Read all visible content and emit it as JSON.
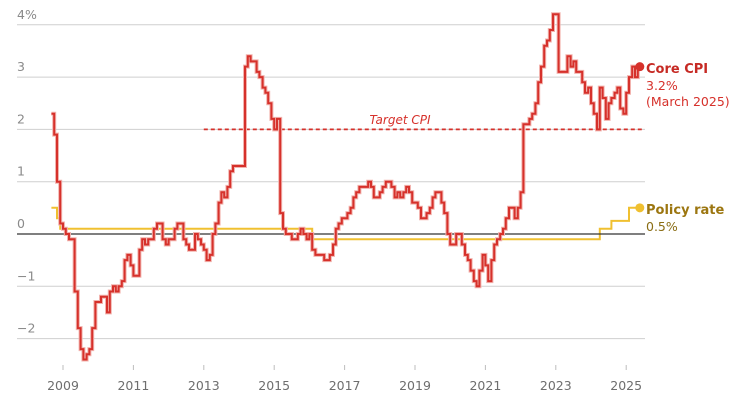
{
  "chart_data": {
    "type": "line",
    "title": "",
    "xlabel": "",
    "ylabel": "",
    "ylim": [
      -2.5,
      4.2
    ],
    "xlim": [
      2008.4,
      2025.6
    ],
    "grid": true,
    "legend_position": "right-inline",
    "y_ticks": [
      {
        "value": 4,
        "label": "4%"
      },
      {
        "value": 3,
        "label": "3"
      },
      {
        "value": 2,
        "label": "2"
      },
      {
        "value": 1,
        "label": "1"
      },
      {
        "value": 0,
        "label": "0"
      },
      {
        "value": -1,
        "label": "−1"
      },
      {
        "value": -2,
        "label": "−2"
      }
    ],
    "x_ticks": [
      {
        "value": 2009,
        "label": "2009"
      },
      {
        "value": 2011,
        "label": "2011"
      },
      {
        "value": 2013,
        "label": "2013"
      },
      {
        "value": 2015,
        "label": "2015"
      },
      {
        "value": 2017,
        "label": "2017"
      },
      {
        "value": 2019,
        "label": "2019"
      },
      {
        "value": 2021,
        "label": "2021"
      },
      {
        "value": 2023,
        "label": "2023"
      },
      {
        "value": 2025,
        "label": "2025"
      }
    ],
    "series": [
      {
        "name": "Core CPI",
        "color": "#d6312b",
        "step": true,
        "label_title": "Core CPI",
        "label_value": "3.2%",
        "label_note": "(March 2025)",
        "points": [
          [
            2008.67,
            2.3
          ],
          [
            2008.75,
            1.9
          ],
          [
            2008.83,
            1.0
          ],
          [
            2008.92,
            0.2
          ],
          [
            2009.0,
            0.1
          ],
          [
            2009.08,
            0.0
          ],
          [
            2009.17,
            -0.1
          ],
          [
            2009.33,
            -1.1
          ],
          [
            2009.42,
            -1.8
          ],
          [
            2009.5,
            -2.2
          ],
          [
            2009.58,
            -2.4
          ],
          [
            2009.67,
            -2.3
          ],
          [
            2009.75,
            -2.2
          ],
          [
            2009.83,
            -1.8
          ],
          [
            2009.92,
            -1.3
          ],
          [
            2010.08,
            -1.2
          ],
          [
            2010.25,
            -1.5
          ],
          [
            2010.33,
            -1.1
          ],
          [
            2010.42,
            -1.0
          ],
          [
            2010.5,
            -1.1
          ],
          [
            2010.58,
            -1.0
          ],
          [
            2010.67,
            -0.9
          ],
          [
            2010.75,
            -0.5
          ],
          [
            2010.83,
            -0.4
          ],
          [
            2010.92,
            -0.6
          ],
          [
            2011.0,
            -0.8
          ],
          [
            2011.17,
            -0.3
          ],
          [
            2011.25,
            -0.1
          ],
          [
            2011.33,
            -0.2
          ],
          [
            2011.42,
            -0.1
          ],
          [
            2011.58,
            0.1
          ],
          [
            2011.67,
            0.2
          ],
          [
            2011.83,
            -0.1
          ],
          [
            2011.92,
            -0.2
          ],
          [
            2012.0,
            -0.1
          ],
          [
            2012.17,
            0.1
          ],
          [
            2012.25,
            0.2
          ],
          [
            2012.42,
            -0.1
          ],
          [
            2012.5,
            -0.2
          ],
          [
            2012.58,
            -0.3
          ],
          [
            2012.75,
            0.0
          ],
          [
            2012.83,
            -0.1
          ],
          [
            2012.92,
            -0.2
          ],
          [
            2013.0,
            -0.3
          ],
          [
            2013.08,
            -0.5
          ],
          [
            2013.17,
            -0.4
          ],
          [
            2013.25,
            0.0
          ],
          [
            2013.33,
            0.2
          ],
          [
            2013.42,
            0.6
          ],
          [
            2013.5,
            0.8
          ],
          [
            2013.58,
            0.7
          ],
          [
            2013.67,
            0.9
          ],
          [
            2013.75,
            1.2
          ],
          [
            2013.83,
            1.3
          ],
          [
            2014.17,
            3.2
          ],
          [
            2014.25,
            3.4
          ],
          [
            2014.33,
            3.3
          ],
          [
            2014.5,
            3.1
          ],
          [
            2014.58,
            3.0
          ],
          [
            2014.67,
            2.8
          ],
          [
            2014.75,
            2.7
          ],
          [
            2014.83,
            2.5
          ],
          [
            2014.92,
            2.2
          ],
          [
            2015.0,
            2.0
          ],
          [
            2015.08,
            2.2
          ],
          [
            2015.17,
            0.4
          ],
          [
            2015.25,
            0.1
          ],
          [
            2015.33,
            0.0
          ],
          [
            2015.5,
            -0.1
          ],
          [
            2015.67,
            0.0
          ],
          [
            2015.75,
            0.1
          ],
          [
            2015.83,
            0.0
          ],
          [
            2015.92,
            -0.1
          ],
          [
            2016.0,
            0.0
          ],
          [
            2016.08,
            -0.3
          ],
          [
            2016.17,
            -0.4
          ],
          [
            2016.42,
            -0.5
          ],
          [
            2016.58,
            -0.4
          ],
          [
            2016.67,
            -0.2
          ],
          [
            2016.75,
            0.1
          ],
          [
            2016.83,
            0.2
          ],
          [
            2016.92,
            0.3
          ],
          [
            2017.08,
            0.4
          ],
          [
            2017.17,
            0.5
          ],
          [
            2017.25,
            0.7
          ],
          [
            2017.33,
            0.8
          ],
          [
            2017.42,
            0.9
          ],
          [
            2017.67,
            1.0
          ],
          [
            2017.75,
            0.9
          ],
          [
            2017.83,
            0.7
          ],
          [
            2018.0,
            0.8
          ],
          [
            2018.08,
            0.9
          ],
          [
            2018.17,
            1.0
          ],
          [
            2018.33,
            0.9
          ],
          [
            2018.42,
            0.7
          ],
          [
            2018.5,
            0.8
          ],
          [
            2018.58,
            0.7
          ],
          [
            2018.67,
            0.8
          ],
          [
            2018.75,
            0.9
          ],
          [
            2018.83,
            0.8
          ],
          [
            2018.92,
            0.6
          ],
          [
            2019.08,
            0.5
          ],
          [
            2019.17,
            0.3
          ],
          [
            2019.33,
            0.4
          ],
          [
            2019.42,
            0.5
          ],
          [
            2019.5,
            0.7
          ],
          [
            2019.58,
            0.8
          ],
          [
            2019.75,
            0.6
          ],
          [
            2019.83,
            0.4
          ],
          [
            2019.92,
            0.0
          ],
          [
            2020.0,
            -0.2
          ],
          [
            2020.17,
            0.0
          ],
          [
            2020.33,
            -0.2
          ],
          [
            2020.42,
            -0.4
          ],
          [
            2020.5,
            -0.5
          ],
          [
            2020.58,
            -0.7
          ],
          [
            2020.67,
            -0.9
          ],
          [
            2020.75,
            -1.0
          ],
          [
            2020.83,
            -0.7
          ],
          [
            2020.92,
            -0.4
          ],
          [
            2021.0,
            -0.6
          ],
          [
            2021.08,
            -0.9
          ],
          [
            2021.17,
            -0.5
          ],
          [
            2021.25,
            -0.2
          ],
          [
            2021.33,
            -0.1
          ],
          [
            2021.42,
            0.0
          ],
          [
            2021.5,
            0.1
          ],
          [
            2021.58,
            0.3
          ],
          [
            2021.67,
            0.5
          ],
          [
            2021.83,
            0.3
          ],
          [
            2021.92,
            0.5
          ],
          [
            2022.0,
            0.8
          ],
          [
            2022.08,
            2.1
          ],
          [
            2022.25,
            2.2
          ],
          [
            2022.33,
            2.3
          ],
          [
            2022.42,
            2.5
          ],
          [
            2022.5,
            2.9
          ],
          [
            2022.58,
            3.2
          ],
          [
            2022.67,
            3.6
          ],
          [
            2022.75,
            3.7
          ],
          [
            2022.83,
            3.9
          ],
          [
            2022.92,
            4.2
          ],
          [
            2023.08,
            3.1
          ],
          [
            2023.33,
            3.4
          ],
          [
            2023.42,
            3.2
          ],
          [
            2023.5,
            3.3
          ],
          [
            2023.58,
            3.1
          ],
          [
            2023.75,
            2.9
          ],
          [
            2023.83,
            2.7
          ],
          [
            2023.92,
            2.8
          ],
          [
            2024.0,
            2.5
          ],
          [
            2024.08,
            2.3
          ],
          [
            2024.17,
            2.0
          ],
          [
            2024.25,
            2.8
          ],
          [
            2024.33,
            2.6
          ],
          [
            2024.42,
            2.2
          ],
          [
            2024.5,
            2.5
          ],
          [
            2024.58,
            2.6
          ],
          [
            2024.67,
            2.7
          ],
          [
            2024.75,
            2.8
          ],
          [
            2024.83,
            2.4
          ],
          [
            2024.92,
            2.3
          ],
          [
            2025.0,
            2.7
          ],
          [
            2025.08,
            3.0
          ],
          [
            2025.17,
            3.2
          ],
          [
            2025.25,
            3.0
          ],
          [
            2025.33,
            3.2
          ]
        ]
      },
      {
        "name": "Policy rate",
        "color": "#f0c030",
        "label_color": "#a07a10",
        "step": true,
        "label_title": "Policy rate",
        "label_value": "0.5%",
        "points": [
          [
            2008.67,
            0.5
          ],
          [
            2008.83,
            0.3
          ],
          [
            2008.92,
            0.1
          ],
          [
            2016.08,
            -0.1
          ],
          [
            2024.25,
            0.1
          ],
          [
            2024.58,
            0.25
          ],
          [
            2025.08,
            0.5
          ],
          [
            2025.33,
            0.5
          ]
        ]
      }
    ],
    "annotations": [
      {
        "type": "hline",
        "label": "Target CPI",
        "value": 2,
        "x_start": 2013.0,
        "x_end": 2025.5,
        "color": "#d6312b",
        "style": "dashed"
      }
    ]
  },
  "labels": {
    "target_cpi": "Target CPI",
    "core_cpi_title": "Core CPI",
    "core_cpi_value": "3.2%",
    "core_cpi_note": "(March 2025)",
    "policy_rate_title": "Policy rate",
    "policy_rate_value": "0.5%"
  }
}
